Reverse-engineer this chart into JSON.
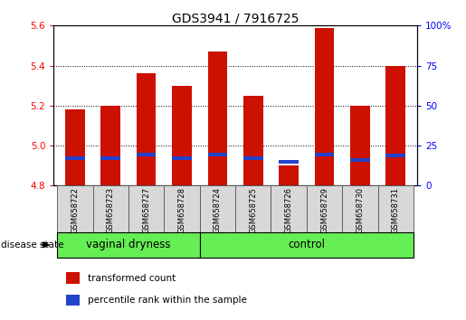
{
  "title": "GDS3941 / 7916725",
  "samples": [
    "GSM658722",
    "GSM658723",
    "GSM658727",
    "GSM658728",
    "GSM658724",
    "GSM658725",
    "GSM658726",
    "GSM658729",
    "GSM658730",
    "GSM658731"
  ],
  "red_values": [
    5.18,
    5.2,
    5.36,
    5.3,
    5.47,
    5.25,
    4.9,
    5.59,
    5.2,
    5.4
  ],
  "blue_values": [
    4.928,
    4.928,
    4.944,
    4.928,
    4.944,
    4.928,
    4.908,
    4.944,
    4.92,
    4.94
  ],
  "y_min": 4.8,
  "y_max": 5.6,
  "y_ticks_left": [
    4.8,
    5.0,
    5.2,
    5.4,
    5.6
  ],
  "y_ticks_right": [
    0,
    25,
    50,
    75,
    100
  ],
  "bar_color": "#cc1100",
  "blue_color": "#2244cc",
  "group1_label": "vaginal dryness",
  "group2_label": "control",
  "group1_count": 4,
  "group2_count": 6,
  "legend_red": "transformed count",
  "legend_blue": "percentile rank within the sample",
  "disease_state_label": "disease state",
  "group_bg_color": "#66ee55",
  "sample_bg_color": "#d8d8d8",
  "bar_width": 0.55
}
